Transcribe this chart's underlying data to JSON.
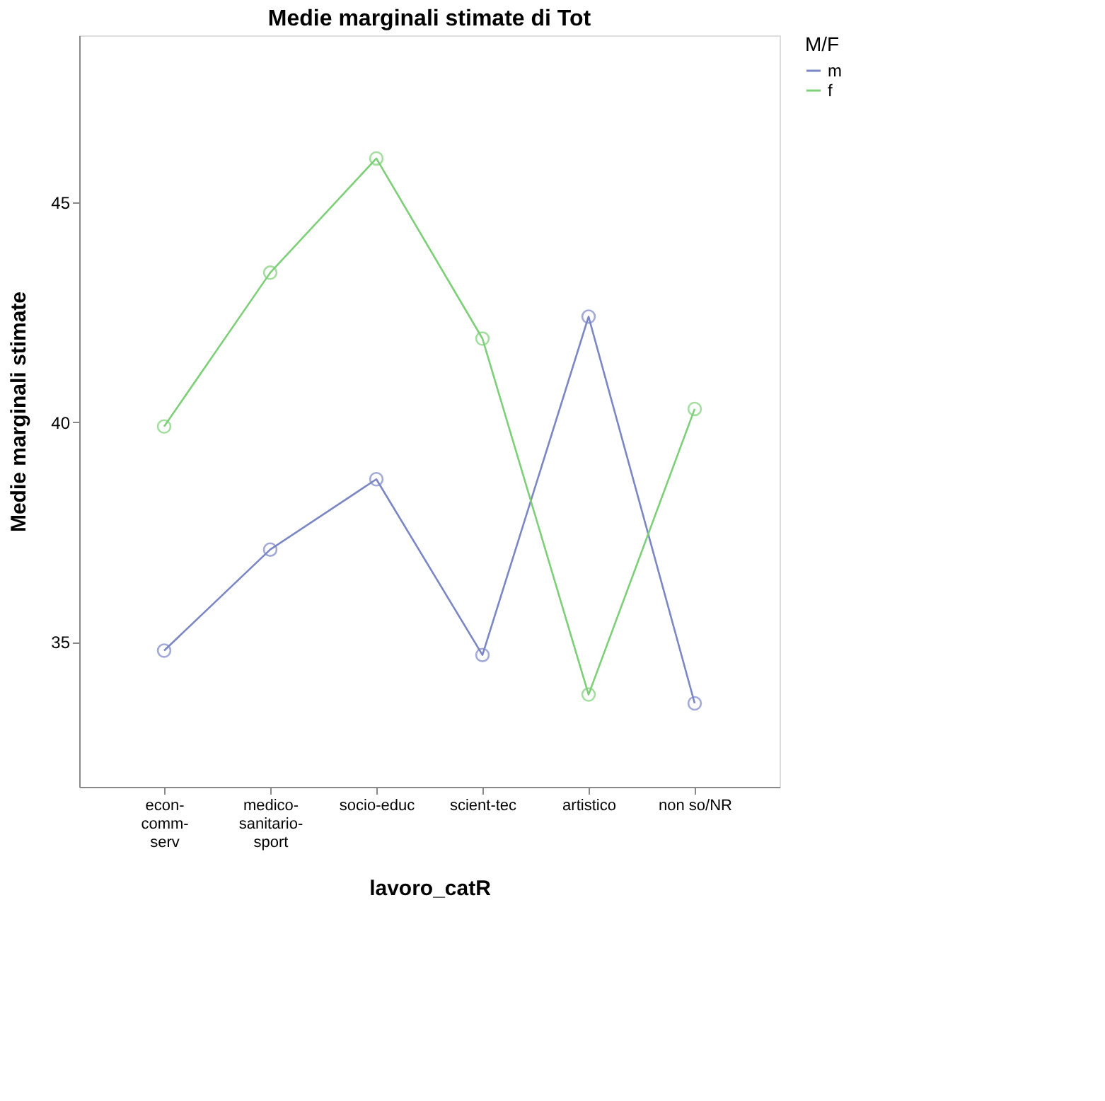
{
  "chart_data": {
    "type": "line",
    "title": "Medie marginali stimate di Tot",
    "xlabel": "lavoro_catR",
    "ylabel": "Medie marginali stimate",
    "legend_title": "M/F",
    "categories": [
      "econ-comm-serv",
      "medico-sanitario-sport",
      "socio-educ",
      "scient-tec",
      "artistico",
      "non so/NR"
    ],
    "series": [
      {
        "name": "m",
        "color": "#7b86c5",
        "values": [
          34.8,
          37.1,
          38.7,
          34.7,
          42.4,
          33.6
        ]
      },
      {
        "name": "f",
        "color": "#7dcf78",
        "values": [
          39.9,
          43.4,
          46.0,
          41.9,
          33.8,
          40.3
        ]
      }
    ],
    "ylim": [
      31.7,
      48.8
    ],
    "yticks": [
      35,
      40,
      45
    ],
    "grid": false,
    "legend": "top right",
    "marker": "circle",
    "line_style": "solid"
  }
}
